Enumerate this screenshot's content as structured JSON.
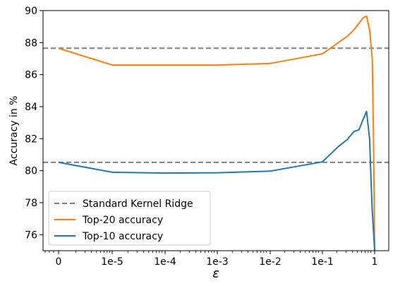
{
  "chart_data": {
    "type": "line",
    "xlabel": "ε",
    "ylabel": "Accuracy in %",
    "x_ticks": [
      "0",
      "1e-5",
      "1e-4",
      "1e-3",
      "1e-2",
      "1e-1",
      "1"
    ],
    "y_ticks": [
      "76",
      "78",
      "80",
      "82",
      "84",
      "86",
      "88",
      "90"
    ],
    "ylim": [
      75,
      90
    ],
    "x_scale": "log, with 0 placed left of 1e-5",
    "grid": false,
    "legend_position": "lower-left",
    "reference_lines": [
      {
        "name": "Standard Kernel Ridge",
        "y": 87.65,
        "color": "#808080",
        "style": "dashed"
      },
      {
        "name": "Standard Kernel Ridge",
        "y": 80.52,
        "color": "#808080",
        "style": "dashed"
      }
    ],
    "series": [
      {
        "name": "Top-20 accuracy",
        "color": "#ff7f0e",
        "points": [
          [
            "0",
            87.65
          ],
          [
            "1e-5",
            86.6
          ],
          [
            "1e-4",
            86.6
          ],
          [
            "1e-3",
            86.6
          ],
          [
            "1e-2",
            86.7
          ],
          [
            "1e-1",
            87.3
          ],
          [
            "0.3",
            88.4
          ],
          [
            "0.4",
            88.8
          ],
          [
            "0.5",
            89.2
          ],
          [
            "0.6",
            89.55
          ],
          [
            "0.7",
            89.65
          ],
          [
            "0.8",
            88.8
          ],
          [
            "0.9",
            87.0
          ],
          [
            "0.95",
            82.0
          ],
          [
            "1",
            75.0
          ]
        ]
      },
      {
        "name": "Top-10 accuracy",
        "color": "#1f77b4",
        "points": [
          [
            "0",
            80.52
          ],
          [
            "1e-5",
            79.9
          ],
          [
            "1e-4",
            79.85
          ],
          [
            "1e-3",
            79.87
          ],
          [
            "1e-2",
            79.97
          ],
          [
            "1e-1",
            80.55
          ],
          [
            "0.2",
            81.5
          ],
          [
            "0.3",
            81.95
          ],
          [
            "0.4",
            82.45
          ],
          [
            "0.5",
            82.55
          ],
          [
            "0.6",
            83.2
          ],
          [
            "0.7",
            83.7
          ],
          [
            "0.8",
            82.0
          ],
          [
            "0.85",
            79.5
          ],
          [
            "0.9",
            77.5
          ],
          [
            "1",
            75.0
          ]
        ]
      }
    ],
    "legend": [
      {
        "label": "Standard Kernel Ridge",
        "color": "#808080",
        "style": "dashed"
      },
      {
        "label": "Top-20 accuracy",
        "color": "#ff7f0e",
        "style": "solid"
      },
      {
        "label": "Top-10 accuracy",
        "color": "#1f77b4",
        "style": "solid"
      }
    ]
  }
}
